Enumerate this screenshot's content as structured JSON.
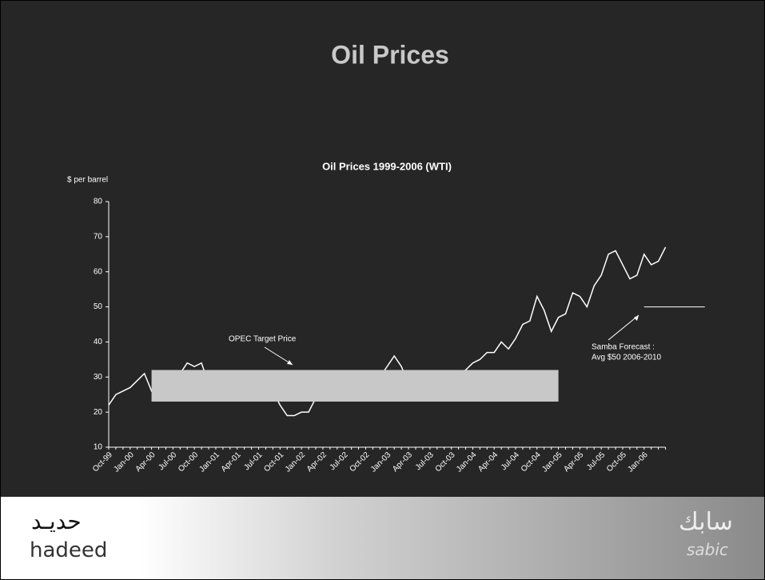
{
  "slide_title": "Oil Prices",
  "chart_data": {
    "type": "line",
    "title": "Oil Prices 1999-2006 (WTI)",
    "y_label": "$ per barrel",
    "categories": [
      "Oct-99",
      null,
      null,
      "Jan-00",
      null,
      null,
      "Apr-00",
      null,
      null,
      "Jul-00",
      null,
      null,
      "Oct-00",
      null,
      null,
      "Jan-01",
      null,
      null,
      "Apr-01",
      null,
      null,
      "Jul-01",
      null,
      null,
      "Oct-01",
      null,
      null,
      "Jan-02",
      null,
      null,
      "Apr-02",
      null,
      null,
      "Jul-02",
      null,
      null,
      "Oct-02",
      null,
      null,
      "Jan-03",
      null,
      null,
      "Apr-03",
      null,
      null,
      "Jul-03",
      null,
      null,
      "Oct-03",
      null,
      null,
      "Jan-04",
      null,
      null,
      "Apr-04",
      null,
      null,
      "Jul-04",
      null,
      null,
      "Oct-04",
      null,
      null,
      "Jan-05",
      null,
      null,
      "Apr-05",
      null,
      null,
      "Jul-05",
      null,
      null,
      "Oct-05",
      null,
      null,
      "Jan-06",
      null,
      null,
      null
    ],
    "series": [
      {
        "name": "WTI",
        "color": "#ffffff",
        "values": [
          22,
          25,
          26,
          27,
          29,
          31,
          26,
          28,
          31,
          30,
          31,
          34,
          33,
          34,
          28,
          29,
          29,
          27,
          27,
          28,
          27,
          26,
          27,
          26,
          22,
          19,
          19,
          20,
          20,
          24,
          26,
          27,
          25,
          27,
          28,
          29,
          29,
          27,
          30,
          33,
          36,
          33,
          28,
          28,
          30,
          30,
          31,
          28,
          30,
          31,
          32,
          34,
          35,
          37,
          37,
          40,
          38,
          41,
          45,
          46,
          53,
          49,
          43,
          47,
          48,
          54,
          53,
          50,
          56,
          59,
          65,
          66,
          62,
          58,
          59,
          65,
          62,
          63,
          67
        ]
      }
    ],
    "ylim": [
      10,
      80
    ],
    "yticks": [
      10,
      20,
      30,
      40,
      50,
      60,
      70,
      80
    ],
    "opec_band": {
      "label": "OPEC Target Price",
      "y": [
        23,
        32
      ],
      "x": [
        "Apr-00",
        "Jan-05"
      ],
      "color": "#c8c8c8"
    },
    "forecast": {
      "label": [
        "Samba Forecast :",
        "Avg $50 2006-2010"
      ],
      "value": 50
    }
  },
  "footer": {
    "left_logo": [
      "حديـد",
      "hadeed"
    ],
    "right_logo": [
      "سابك",
      "sabic"
    ]
  }
}
